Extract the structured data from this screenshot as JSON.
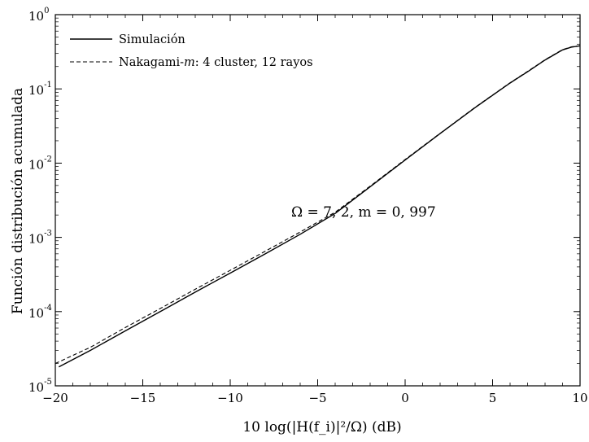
{
  "chart_data": {
    "type": "line",
    "xlabel": "10 log(|H(f_i)|²/Ω) (dB)",
    "ylabel": "Función distribución acumulada",
    "xlim": [
      -20,
      10
    ],
    "ylim": [
      1e-05,
      1
    ],
    "yscale": "log",
    "x_ticks": [
      -20,
      -15,
      -10,
      -5,
      0,
      5,
      10
    ],
    "x_tick_labels": [
      "−20",
      "−15",
      "−10",
      "−5",
      "0",
      "5",
      "10"
    ],
    "y_ticks": [
      1e-05,
      0.0001,
      0.001,
      0.01,
      0.1,
      1
    ],
    "y_tick_labels": [
      {
        "base": "10",
        "exp": "-5"
      },
      {
        "base": "10",
        "exp": "-4"
      },
      {
        "base": "10",
        "exp": "-3"
      },
      {
        "base": "10",
        "exp": "-2"
      },
      {
        "base": "10",
        "exp": "-1"
      },
      {
        "base": "10",
        "exp": "0"
      }
    ],
    "grid": false,
    "legend_position": "top-left",
    "annotation": "Ω = 7, 2,   m = 0, 997",
    "series": [
      {
        "name": "Simulación",
        "style": "solid",
        "color": "#000000",
        "x": [
          -19.8,
          -18,
          -16,
          -14,
          -12,
          -10,
          -8,
          -6,
          -4,
          -2,
          0,
          2,
          4,
          6,
          7,
          8,
          9,
          9.5,
          10
        ],
        "y": [
          1.8e-05,
          3e-05,
          5.5e-05,
          0.0001,
          0.000183,
          0.00033,
          0.0006,
          0.0011,
          0.0021,
          0.0048,
          0.011,
          0.025,
          0.056,
          0.12,
          0.17,
          0.245,
          0.335,
          0.365,
          0.38
        ]
      },
      {
        "name": "Nakagami-m: 4 cluster, 12 rayos",
        "style": "dashed",
        "color": "#000000",
        "x": [
          -20,
          -18,
          -16,
          -14,
          -12,
          -10,
          -8,
          -6,
          -4,
          -2,
          0,
          2,
          4,
          6,
          7,
          8,
          9,
          9.5,
          10
        ],
        "y": [
          2e-05,
          3.3e-05,
          6.1e-05,
          0.00011,
          0.0002,
          0.00036,
          0.00065,
          0.00118,
          0.00218,
          0.0049,
          0.0112,
          0.0252,
          0.0565,
          0.121,
          0.172,
          0.247,
          0.338,
          0.368,
          0.382
        ]
      }
    ]
  },
  "legend": {
    "items": [
      {
        "label": "Simulación",
        "style": "solid"
      },
      {
        "label_prefix": "Nakagami-",
        "label_italic": "m",
        "label_suffix": ": 4 cluster, 12 rayos",
        "style": "dashed"
      }
    ]
  }
}
